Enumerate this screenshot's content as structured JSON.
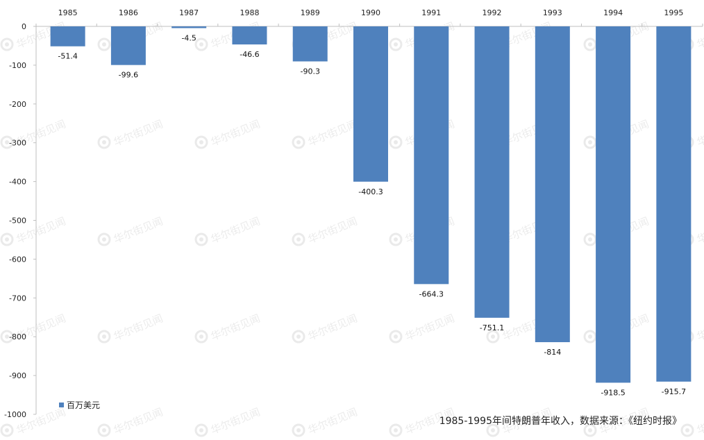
{
  "chart_data": {
    "type": "bar",
    "categories": [
      "1985",
      "1986",
      "1987",
      "1988",
      "1989",
      "1990",
      "1991",
      "1992",
      "1993",
      "1994",
      "1995"
    ],
    "series": [
      {
        "name": "百万美元",
        "values": [
          -51.4,
          -99.6,
          -4.5,
          -46.6,
          -90.3,
          -400.3,
          -664.3,
          -751.1,
          -814,
          -918.5,
          -915.7
        ],
        "labels": [
          "-51.4",
          "-99.6",
          "-4.5",
          "-46.6",
          "-90.3",
          "-400.3",
          "-664.3",
          "-751.1",
          "-814",
          "-918.5",
          "-915.7"
        ]
      }
    ],
    "ylim": [
      -1000,
      0
    ],
    "yticks": [
      0,
      -100,
      -200,
      -300,
      -400,
      -500,
      -600,
      -700,
      -800,
      -900,
      -1000
    ],
    "ytick_labels": [
      "0",
      "-100",
      "-200",
      "-300",
      "-400",
      "-500",
      "-600",
      "-700",
      "-800",
      "-900",
      "-1000"
    ],
    "legend_placement": "bottom-left",
    "grid": false,
    "x_axis_position": "top",
    "colors": {
      "bar": "#4f81bd",
      "axis": "#bfbfbf"
    }
  },
  "caption": "1985-1995年间特朗普年收入，数据来源：《纽约时报》",
  "watermark": "华尔街见闻"
}
